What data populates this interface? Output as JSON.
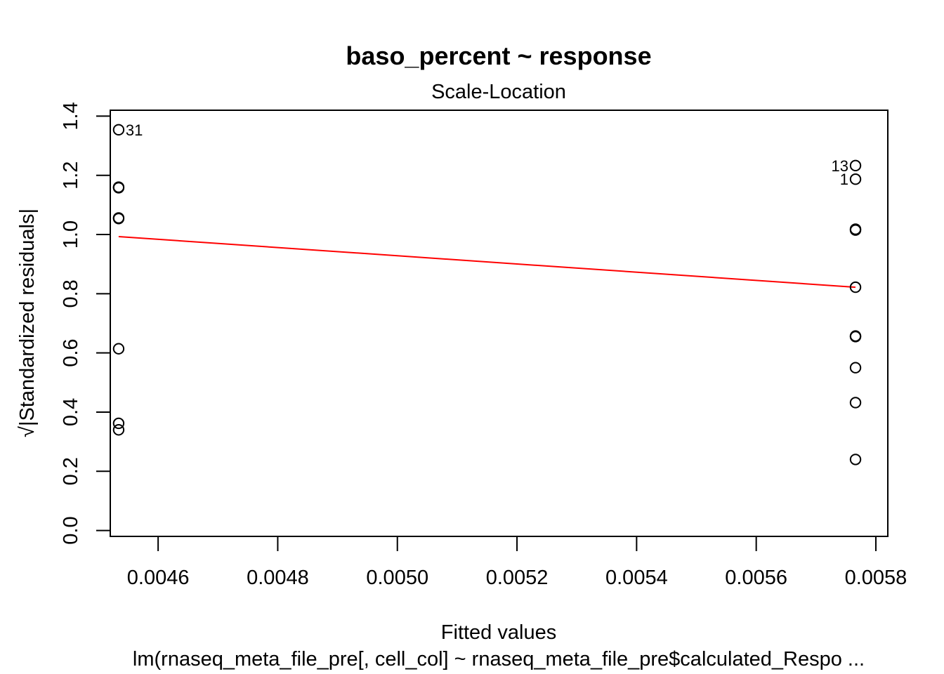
{
  "chart_data": {
    "type": "scatter",
    "title": "baso_percent ~ response",
    "subtitle": "Scale-Location",
    "xlabel": "Fitted values",
    "ylabel": "√|Standardized residuals|",
    "caption": "lm(rnaseq_meta_file_pre[, cell_col] ~ rnaseq_meta_file_pre$calculated_Respo ...",
    "xlim": [
      0.00452,
      0.00582
    ],
    "ylim": [
      -0.02,
      1.42
    ],
    "x_ticks": [
      "0.0046",
      "0.0048",
      "0.0050",
      "0.0052",
      "0.0054",
      "0.0056",
      "0.0058"
    ],
    "y_ticks": [
      "0.0",
      "0.2",
      "0.4",
      "0.6",
      "0.8",
      "1.0",
      "1.2",
      "1.4"
    ],
    "grid": false,
    "points": [
      {
        "x": 0.004534,
        "y": 1.354,
        "label": "31"
      },
      {
        "x": 0.004534,
        "y": 1.16
      },
      {
        "x": 0.004534,
        "y": 1.158
      },
      {
        "x": 0.004534,
        "y": 1.056
      },
      {
        "x": 0.004534,
        "y": 1.054
      },
      {
        "x": 0.004534,
        "y": 0.614
      },
      {
        "x": 0.004534,
        "y": 0.362
      },
      {
        "x": 0.004534,
        "y": 0.34
      },
      {
        "x": 0.005766,
        "y": 1.233,
        "label": "13"
      },
      {
        "x": 0.005766,
        "y": 1.187,
        "label": "1"
      },
      {
        "x": 0.005766,
        "y": 1.018
      },
      {
        "x": 0.005766,
        "y": 1.015
      },
      {
        "x": 0.005766,
        "y": 0.822
      },
      {
        "x": 0.005766,
        "y": 0.657
      },
      {
        "x": 0.005766,
        "y": 0.655
      },
      {
        "x": 0.005766,
        "y": 0.55
      },
      {
        "x": 0.005766,
        "y": 0.432
      },
      {
        "x": 0.005766,
        "y": 0.24
      }
    ],
    "smooth_line": {
      "color": "#ff0000",
      "points": [
        [
          0.004534,
          0.993
        ],
        [
          0.005766,
          0.822
        ]
      ]
    },
    "colors": {
      "points": "#000000",
      "smooth": "#ff0000"
    }
  }
}
